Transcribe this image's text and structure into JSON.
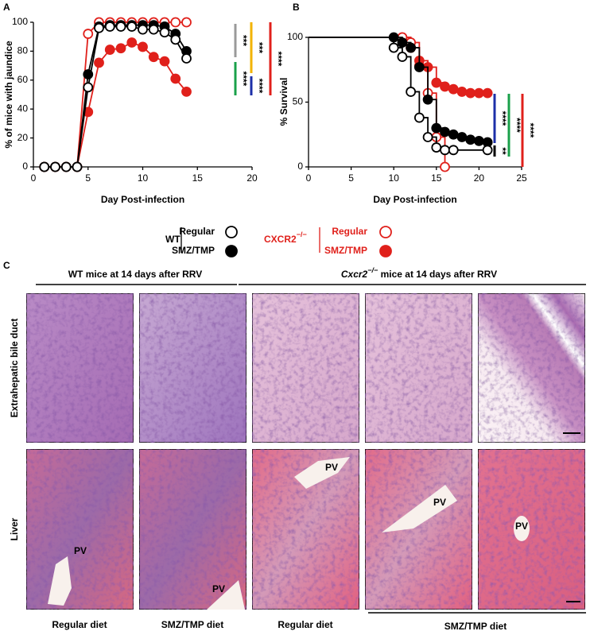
{
  "chart_data": [
    {
      "type": "line",
      "panel": "A",
      "ylabel": "% of mice with jaundice",
      "xlabel": "Day Post-infection",
      "xlim": [
        0,
        20
      ],
      "xticks": [
        0,
        5,
        10,
        15,
        20
      ],
      "ylim": [
        0,
        100
      ],
      "yticks": [
        0,
        20,
        40,
        60,
        80,
        100
      ],
      "series": [
        {
          "color": "#e0201b",
          "marker": "filled",
          "x": [
            1,
            2,
            3,
            4,
            5,
            6,
            7,
            8,
            9,
            10,
            11,
            12,
            13,
            14
          ],
          "values": [
            0,
            0,
            0,
            0,
            38,
            72,
            81,
            82,
            86,
            83,
            76,
            73,
            61,
            52
          ]
        },
        {
          "color": "#e0201b",
          "marker": "open",
          "x": [
            1,
            2,
            3,
            4,
            5,
            6,
            7,
            8,
            9,
            10,
            11,
            12,
            13,
            14
          ],
          "values": [
            0,
            0,
            0,
            0,
            92,
            100,
            100,
            100,
            100,
            100,
            100,
            100,
            100,
            100
          ]
        },
        {
          "color": "#000000",
          "marker": "filled",
          "x": [
            1,
            2,
            3,
            4,
            5,
            6,
            7,
            8,
            9,
            10,
            11,
            12,
            13,
            14
          ],
          "values": [
            0,
            0,
            0,
            0,
            64,
            97,
            98,
            98,
            98,
            98,
            98,
            97,
            92,
            80
          ]
        },
        {
          "color": "#000000",
          "marker": "open",
          "x": [
            1,
            2,
            3,
            4,
            5,
            6,
            7,
            8,
            9,
            10,
            11,
            12,
            13,
            14
          ],
          "values": [
            0,
            0,
            0,
            0,
            55,
            96,
            97,
            97,
            97,
            95,
            95,
            93,
            88,
            75
          ]
        }
      ],
      "annotations": [
        {
          "text": "***",
          "color": "#9a9a9a"
        },
        {
          "text": "***",
          "color": "#f2b300"
        },
        {
          "text": "****",
          "color": "#1aa04a"
        },
        {
          "text": "****",
          "color": "#1c2fa8"
        },
        {
          "text": "****",
          "color": "#e0201b"
        }
      ]
    },
    {
      "type": "step",
      "panel": "B",
      "ylabel": "% Survival",
      "xlabel": "Day Post-infection",
      "xlim": [
        0,
        25
      ],
      "xticks": [
        0,
        5,
        10,
        15,
        20,
        25
      ],
      "ylim": [
        0,
        100
      ],
      "yticks": [
        0,
        50,
        100
      ],
      "series": [
        {
          "color": "#e0201b",
          "marker": "filled",
          "x": [
            11,
            12,
            13,
            14,
            15,
            16,
            17,
            18,
            19,
            20,
            21
          ],
          "values": [
            100,
            92,
            82,
            77,
            65,
            62,
            60,
            58,
            57,
            57,
            57
          ]
        },
        {
          "color": "#e0201b",
          "marker": "open",
          "x": [
            11,
            12,
            13,
            14,
            15,
            16
          ],
          "values": [
            100,
            96,
            78,
            57,
            23,
            0
          ]
        },
        {
          "color": "#000000",
          "marker": "filled",
          "x": [
            10,
            11,
            12,
            13,
            14,
            15,
            16,
            17,
            18,
            19,
            20,
            21
          ],
          "values": [
            100,
            96,
            92,
            77,
            52,
            30,
            27,
            25,
            23,
            21,
            20,
            19
          ]
        },
        {
          "color": "#000000",
          "marker": "open",
          "x": [
            10,
            11,
            12,
            13,
            14,
            15,
            16,
            17,
            21
          ],
          "values": [
            92,
            85,
            58,
            38,
            23,
            15,
            13,
            13,
            13
          ]
        }
      ],
      "annotations": [
        {
          "text": "**",
          "color": "#000000"
        },
        {
          "text": "****",
          "color": "#1c2fa8"
        },
        {
          "text": "****",
          "color": "#1aa04a"
        },
        {
          "text": "****",
          "color": "#e0201b"
        }
      ]
    }
  ],
  "legend": {
    "groups": [
      {
        "label": "WT",
        "color": "#000000",
        "entries": [
          {
            "name": "Regular",
            "marker": "open"
          },
          {
            "name": "SMZ/TMP",
            "marker": "filled"
          }
        ]
      },
      {
        "label": "CXCR2",
        "label_sup": "−/−",
        "color": "#e0201b",
        "entries": [
          {
            "name": "Regular",
            "marker": "open"
          },
          {
            "name": "SMZ/TMP",
            "marker": "filled"
          }
        ]
      }
    ]
  },
  "panel_c": {
    "panel": "C",
    "group_1": "WT mice at 14 days after RRV",
    "group_2": {
      "gene": "Cxcr2",
      "sup": "−/−",
      "rest": " mice at 14 days after RRV"
    },
    "rows": [
      "Extrahepatic bile duct",
      "Liver"
    ],
    "pv_labels": [
      "PV",
      "PV",
      "PV",
      "PV",
      "PV"
    ],
    "columns": [
      "Regular diet",
      "SMZ/TMP diet",
      "Regular diet",
      "SMZ/TMP diet"
    ]
  }
}
